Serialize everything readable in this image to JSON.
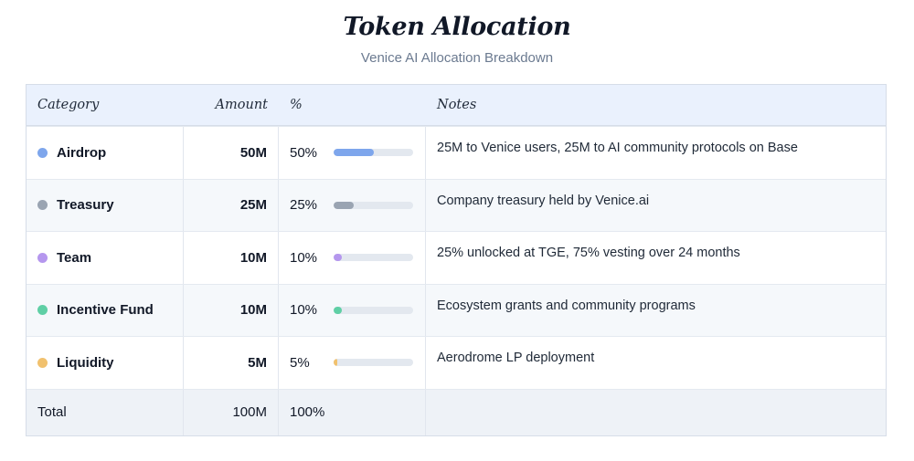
{
  "title": "Token Allocation",
  "subtitle": "Venice AI Allocation Breakdown",
  "table": {
    "headers": {
      "category": "Category",
      "amount": "Amount",
      "percent": "%",
      "notes": "Notes"
    },
    "rows": [
      {
        "category": "Airdrop",
        "amount": "50M",
        "percent": "50%",
        "fraction": 0.5,
        "color": "#7ea6ec",
        "notes": "25M to Venice users, 25M to AI community protocols on Base"
      },
      {
        "category": "Treasury",
        "amount": "25M",
        "percent": "25%",
        "fraction": 0.25,
        "color": "#9aa4b2",
        "notes": "Company treasury held by Venice.ai"
      },
      {
        "category": "Team",
        "amount": "10M",
        "percent": "10%",
        "fraction": 0.1,
        "color": "#b597ee",
        "notes": "25% unlocked at TGE, 75% vesting over 24 months"
      },
      {
        "category": "Incentive Fund",
        "amount": "10M",
        "percent": "10%",
        "fraction": 0.1,
        "color": "#5fcfa5",
        "notes": "Ecosystem grants and community programs"
      },
      {
        "category": "Liquidity",
        "amount": "5M",
        "percent": "5%",
        "fraction": 0.05,
        "color": "#f1c16e",
        "notes": "Aerodrome LP deployment"
      }
    ],
    "total": {
      "category": "Total",
      "amount": "100M",
      "percent": "100%"
    }
  }
}
